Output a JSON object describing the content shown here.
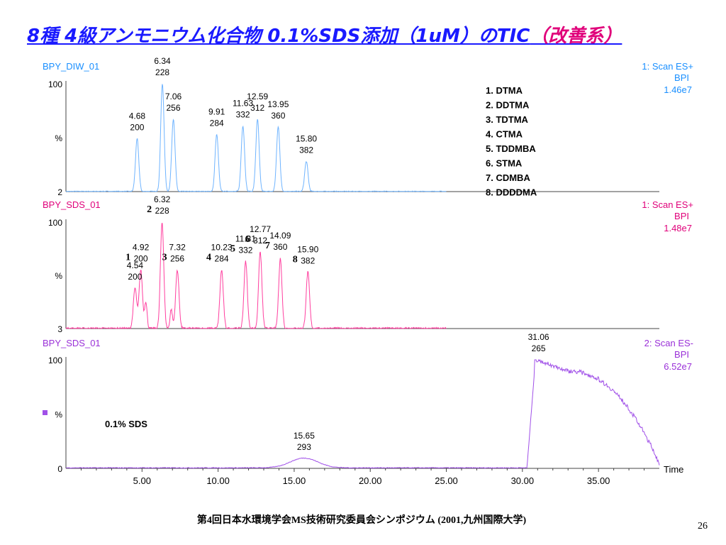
{
  "slide": {
    "title_main": "8種 4級アンモニウム化合物 0.1%SDS添加（1uM）のTIC",
    "title_highlight": "（改善系）",
    "footer": "第4回日本水環境学会MS技術研究委員会シンポジウム (2001,九州国際大学)",
    "page_number": "26"
  },
  "legend_compounds": [
    "1. DTMA",
    "2. DDTMA",
    "3. TDTMA",
    "4. CTMA",
    "5. TDDMBA",
    "6. STMA",
    "7. CDMBA",
    "8. DDDDMA"
  ],
  "annotation_sds": "0.1% SDS",
  "colors": {
    "trace1": "#6fb4ff",
    "trace2": "#ff3f9f",
    "trace3": "#a050e8",
    "label1": "#1a8fff",
    "label2": "#e0007a",
    "label3": "#9a30d8",
    "title": "#1a1aff"
  },
  "chart_data": [
    {
      "type": "line",
      "name": "BPY_DIW_01",
      "scan": "1: Scan ES+",
      "bpi": "BPI",
      "intensity": "1.46e7",
      "ylabel": "%",
      "ymax_label": "100",
      "ymin_label": "2",
      "peaks": [
        {
          "rt": 4.68,
          "mz": 200,
          "height": 49
        },
        {
          "rt": 6.34,
          "mz": 228,
          "height": 100
        },
        {
          "rt": 7.06,
          "mz": 256,
          "height": 67
        },
        {
          "rt": 9.91,
          "mz": 284,
          "height": 53
        },
        {
          "rt": 11.63,
          "mz": 332,
          "height": 61
        },
        {
          "rt": 12.59,
          "mz": 312,
          "height": 67
        },
        {
          "rt": 13.95,
          "mz": 360,
          "height": 60
        },
        {
          "rt": 15.8,
          "mz": 382,
          "height": 28
        }
      ],
      "xlim": [
        0,
        39
      ]
    },
    {
      "type": "line",
      "name": "BPY_SDS_01",
      "scan": "1: Scan ES+",
      "bpi": "BPI",
      "intensity": "1.48e7",
      "ylabel": "%",
      "ymax_label": "100",
      "ymin_label": "3",
      "peak_numbers": [
        {
          "n": "1",
          "rt": 4.92
        },
        {
          "n": "2",
          "rt": 6.32
        },
        {
          "n": "3",
          "rt": 7.32
        },
        {
          "n": "4",
          "rt": 10.23
        },
        {
          "n": "5",
          "rt": 11.81
        },
        {
          "n": "6",
          "rt": 12.77
        },
        {
          "n": "7",
          "rt": 14.09
        },
        {
          "n": "8",
          "rt": 15.9
        }
      ],
      "peaks": [
        {
          "rt": 4.54,
          "mz": 200,
          "height": 38
        },
        {
          "rt": 4.92,
          "mz": 200,
          "height": 55
        },
        {
          "rt": 6.32,
          "mz": 228,
          "height": 100
        },
        {
          "rt": 7.32,
          "mz": 256,
          "height": 55
        },
        {
          "rt": 10.23,
          "mz": 284,
          "height": 55
        },
        {
          "rt": 11.81,
          "mz": 332,
          "height": 63
        },
        {
          "rt": 12.77,
          "mz": 312,
          "height": 72
        },
        {
          "rt": 14.09,
          "mz": 360,
          "height": 66
        },
        {
          "rt": 15.9,
          "mz": 382,
          "height": 53
        }
      ],
      "xlim": [
        0,
        39
      ]
    },
    {
      "type": "line",
      "name": "BPY_SDS_01",
      "scan": "2: Scan ES-",
      "bpi": "BPI",
      "intensity": "6.52e7",
      "ylabel": "%",
      "ymax_label": "100",
      "ymin_label": "0",
      "xlabel": "Time",
      "xticks": [
        "5.00",
        "10.00",
        "15.00",
        "20.00",
        "25.00",
        "30.00",
        "35.00"
      ],
      "peaks": [
        {
          "rt": 15.65,
          "mz": 293,
          "height": 9
        },
        {
          "rt": 31.06,
          "mz": 265,
          "height": 100
        }
      ],
      "xlim": [
        0,
        39
      ]
    }
  ]
}
